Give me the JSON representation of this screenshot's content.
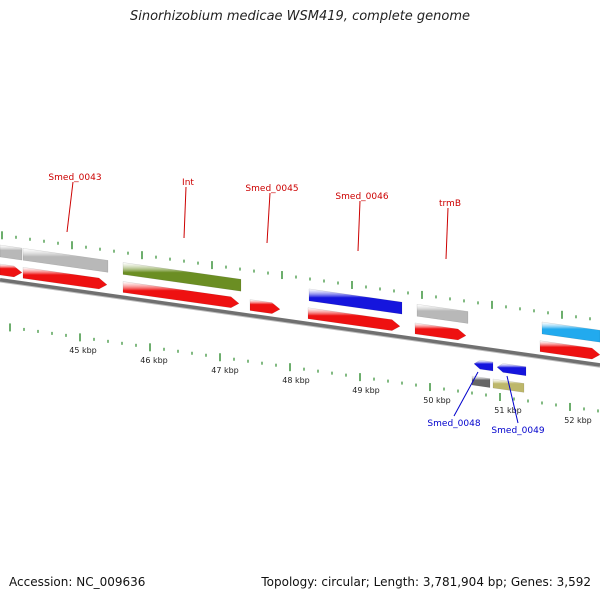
{
  "header": {
    "title": "Sinorhizobium medicae WSM419, complete genome"
  },
  "footer": {
    "accession": "Accession: NC_009636",
    "stats": "Topology: circular; Length: 3,781,904 bp; Genes: 3,592"
  },
  "colors": {
    "background": "#ffffff",
    "backbone": "#707070",
    "tick": "#2e8b2e",
    "gene_label_top": "#cc0000",
    "gene_label_bottom": "#0000cc",
    "cds_forward": "#ee1111",
    "cds_reverse": "#1133dd",
    "gene_grey": "#b8b8b8",
    "gene_olive": "#6b8e23",
    "gene_blue": "#1515dd",
    "gene_cyan": "#22aaee",
    "gene_dark": "#666666",
    "gene_khaki": "#bdb76b"
  },
  "scale_labels": [
    "45 kbp",
    "46 kbp",
    "47 kbp",
    "48 kbp",
    "49 kbp",
    "50 kbp",
    "51 kbp",
    "52 kbp"
  ],
  "gene_labels_top": [
    "Smed_0043",
    "Int",
    "Smed_0045",
    "Smed_0046",
    "trmB"
  ],
  "gene_labels_bottom": [
    "Smed_0048",
    "Smed_0049"
  ]
}
